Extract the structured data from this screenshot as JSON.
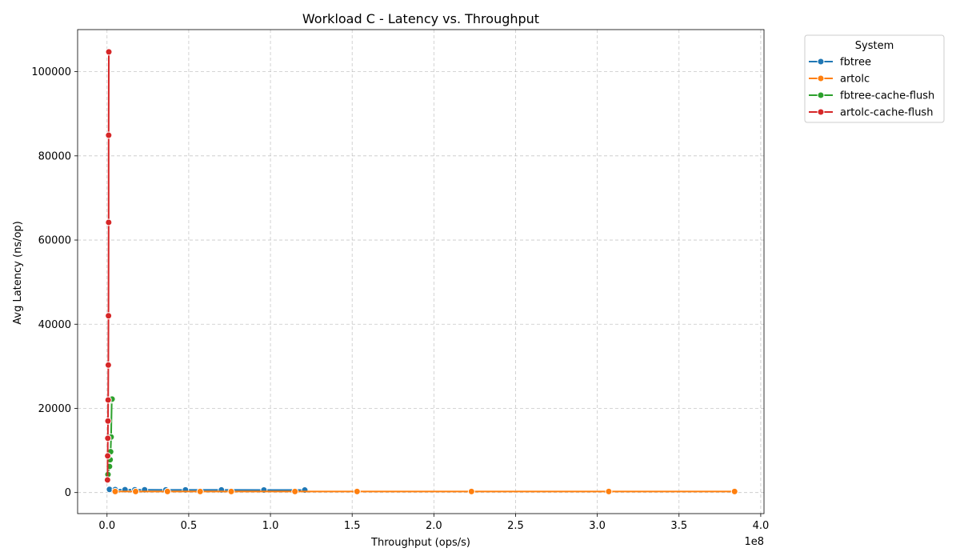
{
  "chart_data": {
    "type": "line",
    "title": "Workload C - Latency vs. Throughput",
    "xlabel": "Throughput (ops/s)",
    "ylabel": "Avg Latency (ns/op)",
    "x_offset_label": "1e8",
    "xlim": [
      -18000000,
      402000000
    ],
    "ylim": [
      -5000,
      110000
    ],
    "x_ticks": [
      0,
      50000000,
      100000000,
      150000000,
      200000000,
      250000000,
      300000000,
      350000000,
      400000000
    ],
    "x_tick_labels": [
      "0.0",
      "0.5",
      "1.0",
      "1.5",
      "2.0",
      "2.5",
      "3.0",
      "3.5",
      "4.0"
    ],
    "y_ticks": [
      0,
      20000,
      40000,
      60000,
      80000,
      100000
    ],
    "y_tick_labels": [
      "0",
      "20000",
      "40000",
      "60000",
      "80000",
      "100000"
    ],
    "grid": true,
    "legend_title": "System",
    "legend_position": "outside-top-right",
    "series": [
      {
        "name": "fbtree",
        "color": "#1f77b4",
        "x": [
          1500000,
          5000000,
          11000000,
          17000000,
          23000000,
          36000000,
          48000000,
          70000000,
          96000000,
          121000000
        ],
        "y": [
          750,
          700,
          680,
          660,
          650,
          640,
          630,
          620,
          610,
          600
        ]
      },
      {
        "name": "artolc",
        "color": "#ff7f0e",
        "x": [
          5000000,
          17500000,
          37000000,
          57000000,
          76000000,
          115000000,
          153000000,
          223000000,
          307000000,
          384000000
        ],
        "y": [
          250,
          250,
          250,
          250,
          250,
          250,
          250,
          250,
          250,
          250
        ]
      },
      {
        "name": "fbtree-cache-flush",
        "color": "#2ca02c",
        "x": [
          600000,
          1500000,
          1900000,
          2200000,
          2500000,
          2900000,
          3100000
        ],
        "y": [
          4300,
          6200,
          7800,
          9700,
          13200,
          22000,
          22200
        ]
      },
      {
        "name": "artolc-cache-flush",
        "color": "#d62728",
        "x": [
          300000,
          400000,
          500000,
          600000,
          700000,
          800000,
          900000,
          1000000,
          1000000,
          1100000
        ],
        "y": [
          3000,
          8700,
          12900,
          17000,
          22000,
          30300,
          42000,
          64200,
          84900,
          104700
        ]
      }
    ]
  }
}
